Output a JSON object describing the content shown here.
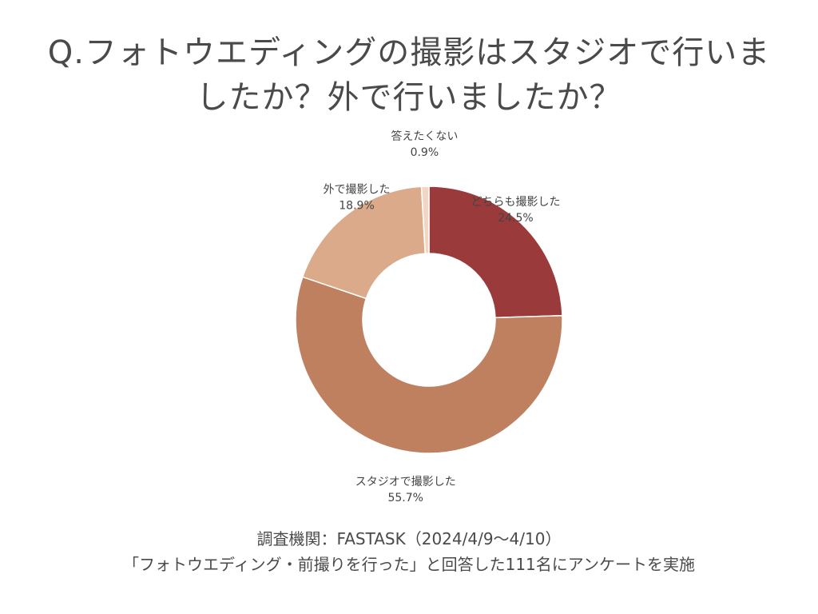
{
  "title": {
    "line1": "Q.フォトウエディングの撮影はスタジオで行いま",
    "line2": "したか？外で行いましたか？"
  },
  "chart_data": {
    "type": "pie",
    "donut": true,
    "title": "Q.フォトウエディングの撮影はスタジオで行いましたか？外で行いましたか？",
    "unit": "%",
    "slices": [
      {
        "name": "どちらも撮影した",
        "value": 24.5,
        "label": "24.5%",
        "color": "#9b3a3a"
      },
      {
        "name": "スタジオで撮影した",
        "value": 55.7,
        "label": "55.7%",
        "color": "#bf8060"
      },
      {
        "name": "外で撮影した",
        "value": 18.9,
        "label": "18.9%",
        "color": "#dbaa8a"
      },
      {
        "name": "答えたくない",
        "value": 0.9,
        "label": "0.9%",
        "color": "#f1d6c4"
      }
    ]
  },
  "footer": {
    "line1": "調査機関：FASTASK（2024/4/9～4/10）",
    "line2": "「フォトウエディング・前撮りを行った」と回答した111名にアンケートを実施"
  }
}
